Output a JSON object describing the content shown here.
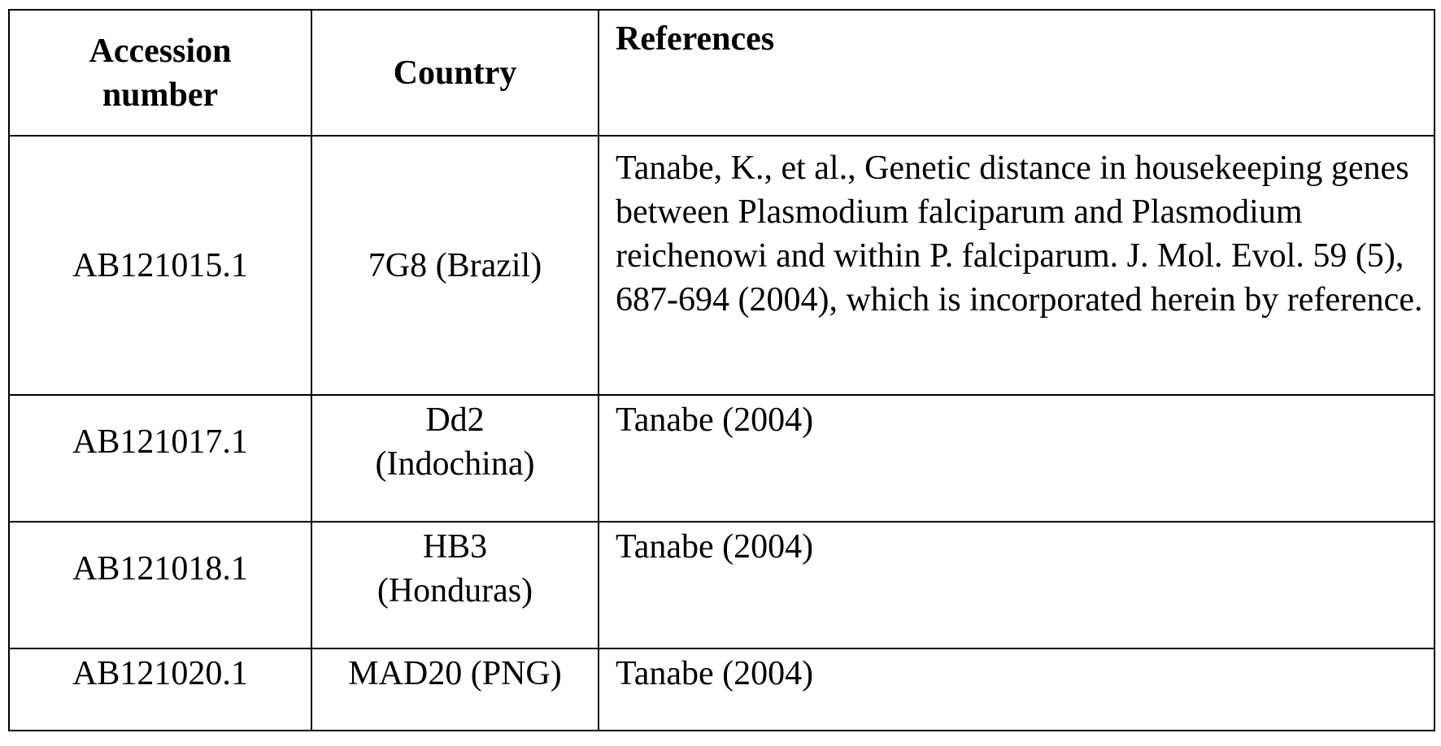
{
  "table": {
    "headers": {
      "accession_line1": "Accession",
      "accession_line2": "number",
      "country": "Country",
      "references": "References"
    },
    "rows": [
      {
        "accession": "AB121015.1",
        "country": "7G8 (Brazil)",
        "reference": "Tanabe, K., et al., Genetic distance in housekeeping genes between Plasmodium falciparum and Plasmodium reichenowi and within P. falciparum. J. Mol. Evol. 59 (5), 687-694 (2004), which is incorporated herein by reference."
      },
      {
        "accession": "AB121017.1",
        "country_line1": "Dd2",
        "country_line2": "(Indochina)",
        "reference": "Tanabe (2004)"
      },
      {
        "accession": "AB121018.1",
        "country_line1": "HB3",
        "country_line2": "(Honduras)",
        "reference": "Tanabe (2004)"
      },
      {
        "accession": "AB121020.1",
        "country": "MAD20 (PNG)",
        "reference": "Tanabe (2004)"
      }
    ]
  }
}
